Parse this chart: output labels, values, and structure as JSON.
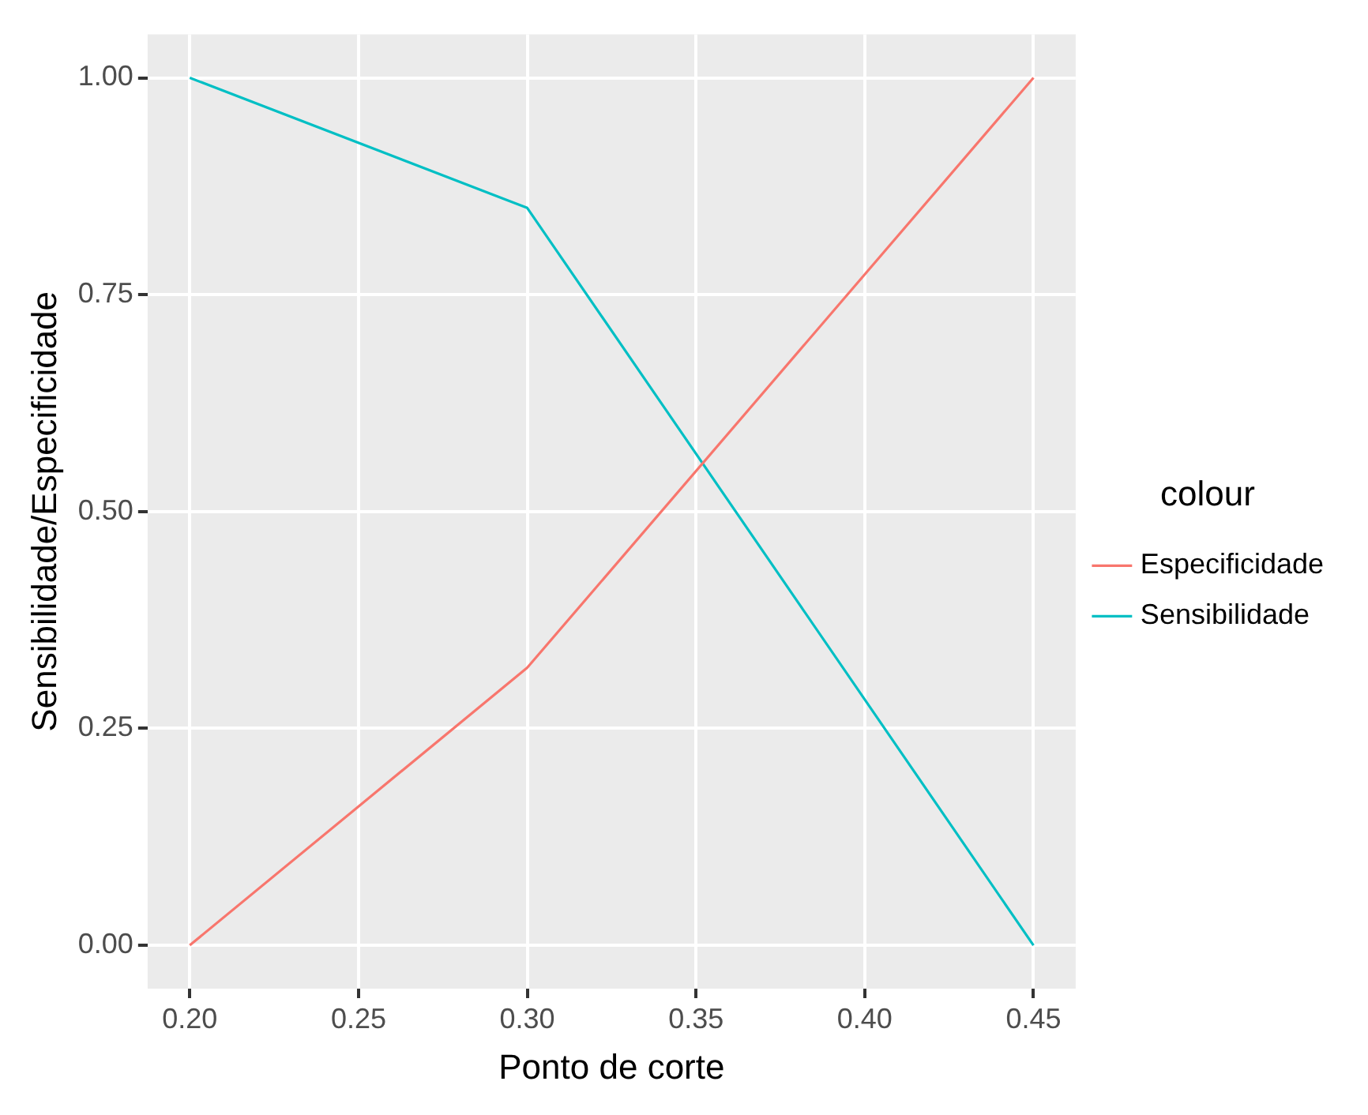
{
  "chart_data": {
    "type": "line",
    "xlabel": "Ponto de corte",
    "ylabel": "Sensibilidade/Especificidade",
    "legend_title": "colour",
    "x": [
      0.2,
      0.3,
      0.45
    ],
    "series": [
      {
        "name": "Especificidade",
        "color": "#f8766d",
        "values": [
          0,
          0.32,
          1
        ]
      },
      {
        "name": "Sensibilidade",
        "color": "#00bfc4",
        "values": [
          1,
          0.85,
          0
        ]
      }
    ],
    "xlim": [
      0.1875,
      0.4625
    ],
    "xticks": [
      {
        "value": 0.2,
        "label": "0.20"
      },
      {
        "value": 0.25,
        "label": "0.25"
      },
      {
        "value": 0.3,
        "label": "0.30"
      },
      {
        "value": 0.35,
        "label": "0.35"
      },
      {
        "value": 0.4,
        "label": "0.40"
      },
      {
        "value": 0.45,
        "label": "0.45"
      }
    ],
    "ylim": [
      -0.05,
      1.05
    ],
    "yticks": [
      {
        "value": 0,
        "label": "0.00"
      },
      {
        "value": 0.25,
        "label": "0.25"
      },
      {
        "value": 0.5,
        "label": "0.50"
      },
      {
        "value": 0.75,
        "label": "0.75"
      },
      {
        "value": 1,
        "label": "1.00"
      }
    ],
    "grid": true,
    "legend": "right",
    "marker": "none",
    "line_style": "solid"
  }
}
